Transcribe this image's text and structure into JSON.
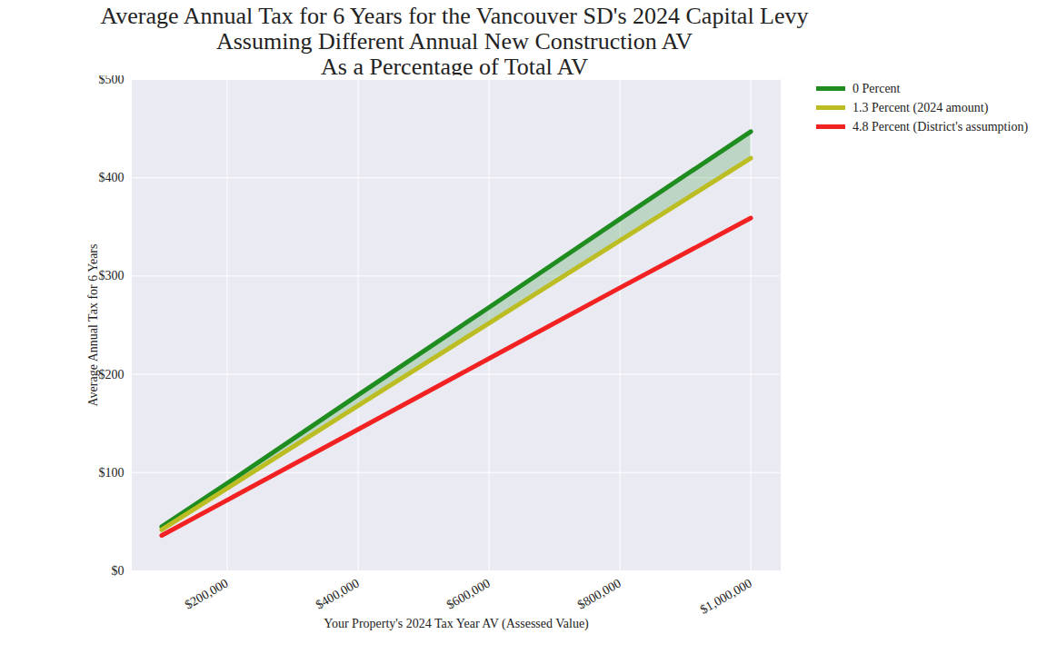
{
  "chart_data": {
    "type": "line",
    "title": "Average Annual Tax for 6 Years for the Vancouver SD's 2024 Capital Levy\nAssuming Different Annual New Construction AV\nAs a Percentage of Total AV",
    "x_label": "Your Property's 2024 Tax Year AV (Assessed Value)",
    "y_label": "Average Annual Tax for 6 Years",
    "x": [
      100000,
      200000,
      400000,
      600000,
      800000,
      1000000
    ],
    "series": [
      {
        "name": "0 Percent",
        "color": "#1e8c1e",
        "values": [
          45,
          89,
          179,
          268,
          358,
          447
        ]
      },
      {
        "name": "1.3 Percent (2024 amount)",
        "color": "#bcbd22",
        "values": [
          42,
          84,
          168,
          252,
          336,
          420
        ]
      },
      {
        "name": "4.8 Percent (District's assumption)",
        "color": "#f22222",
        "values": [
          36,
          72,
          144,
          216,
          288,
          359
        ]
      }
    ],
    "xlim": [
      55000,
      1045000
    ],
    "xticks": [
      {
        "value": 200000,
        "label": "$200,000"
      },
      {
        "value": 400000,
        "label": "$400,000"
      },
      {
        "value": 600000,
        "label": "$600,000"
      },
      {
        "value": 800000,
        "label": "$800,000"
      },
      {
        "value": 1000000,
        "label": "$1,000,000"
      }
    ],
    "ylim": [
      0,
      500
    ],
    "yticks": [
      {
        "value": 0,
        "label": "$0"
      },
      {
        "value": 100,
        "label": "$100"
      },
      {
        "value": 200,
        "label": "$200"
      },
      {
        "value": 300,
        "label": "$300"
      },
      {
        "value": 400,
        "label": "$400"
      },
      {
        "value": 500,
        "label": "$500"
      }
    ],
    "grid": true,
    "legend": "right"
  }
}
